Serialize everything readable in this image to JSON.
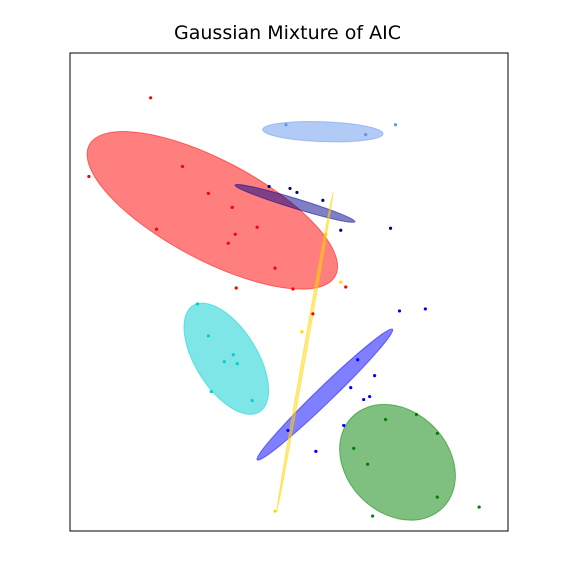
{
  "chart_data": {
    "type": "scatter",
    "title": "Gaussian Mixture of AIC",
    "xlabel": "",
    "ylabel": "",
    "xlim": [
      -2.3,
      2.1
    ],
    "ylim": [
      -1.5,
      3.3
    ],
    "axis_ticks": false,
    "grid": false,
    "legend": "none",
    "series": [
      {
        "color": "#ff0000",
        "points": [
          [
            -1.49,
            2.85
          ],
          [
            -2.11,
            2.06
          ],
          [
            -1.17,
            2.16
          ],
          [
            -0.91,
            1.89
          ],
          [
            -0.67,
            1.75
          ],
          [
            -1.43,
            1.53
          ],
          [
            -0.64,
            1.48
          ],
          [
            -0.71,
            1.39
          ],
          [
            -0.42,
            1.55
          ],
          [
            -0.24,
            1.14
          ],
          [
            -0.63,
            0.94
          ],
          [
            -0.06,
            0.93
          ],
          [
            0.47,
            0.95
          ],
          [
            0.14,
            0.68
          ]
        ],
        "ellipse": {
          "center": [
            -0.87,
            1.72
          ],
          "width": 2.8,
          "height": 1.0,
          "angle_deg": -28
        }
      },
      {
        "color": "#00008b",
        "points": [
          [
            -0.3,
            1.96
          ],
          [
            -0.09,
            1.94
          ],
          [
            -0.02,
            1.9
          ],
          [
            0.24,
            1.82
          ],
          [
            0.42,
            1.52
          ],
          [
            0.92,
            1.54
          ]
        ],
        "ellipse": {
          "center": [
            -0.04,
            1.79
          ],
          "width": 1.26,
          "height": 0.1,
          "angle_deg": -17
        }
      },
      {
        "color": "#6495ed",
        "points": [
          [
            -0.13,
            2.58
          ],
          [
            0.67,
            2.48
          ],
          [
            0.97,
            2.58
          ]
        ],
        "ellipse": {
          "center": [
            0.24,
            2.51
          ],
          "width": 1.21,
          "height": 0.2,
          "angle_deg": -2
        }
      },
      {
        "color": "#00ced1",
        "points": [
          [
            -1.02,
            0.78
          ],
          [
            -0.91,
            0.46
          ],
          [
            -0.66,
            0.27
          ],
          [
            -0.62,
            0.18
          ],
          [
            -0.75,
            0.2
          ],
          [
            -0.88,
            -0.1
          ],
          [
            -0.47,
            -0.19
          ]
        ],
        "ellipse": {
          "center": [
            -0.73,
            0.23
          ],
          "width": 1.26,
          "height": 0.62,
          "angle_deg": -58
        }
      },
      {
        "color": "#0000ff",
        "points": [
          [
            1.01,
            0.71
          ],
          [
            1.27,
            0.73
          ],
          [
            0.59,
            0.22
          ],
          [
            0.76,
            0.06
          ],
          [
            0.52,
            -0.06
          ],
          [
            0.71,
            -0.15
          ],
          [
            0.65,
            -0.18
          ],
          [
            0.45,
            -0.44
          ],
          [
            0.17,
            -0.7
          ],
          [
            -0.11,
            -0.49
          ]
        ],
        "ellipse": {
          "center": [
            0.26,
            -0.13
          ],
          "width": 1.89,
          "height": 0.16,
          "angle_deg": 44
        }
      },
      {
        "color": "#008000",
        "points": [
          [
            0.87,
            -0.38
          ],
          [
            1.18,
            -0.33
          ],
          [
            1.39,
            -0.52
          ],
          [
            0.55,
            -0.67
          ],
          [
            0.69,
            -0.83
          ],
          [
            1.39,
            -1.16
          ],
          [
            1.81,
            -1.26
          ],
          [
            0.74,
            -1.35
          ]
        ],
        "ellipse": {
          "center": [
            0.99,
            -0.81
          ],
          "width": 1.29,
          "height": 1.02,
          "angle_deg": -45
        }
      },
      {
        "color": "#ffd700",
        "points": [
          [
            -0.24,
            -1.3
          ],
          [
            0.27,
            1.48
          ],
          [
            0.42,
            1.0
          ],
          [
            0.03,
            0.5
          ]
        ],
        "ellipse": {
          "center": [
            0.06,
            0.3
          ],
          "width": 3.27,
          "height": 0.03,
          "angle_deg": 80
        }
      }
    ]
  }
}
